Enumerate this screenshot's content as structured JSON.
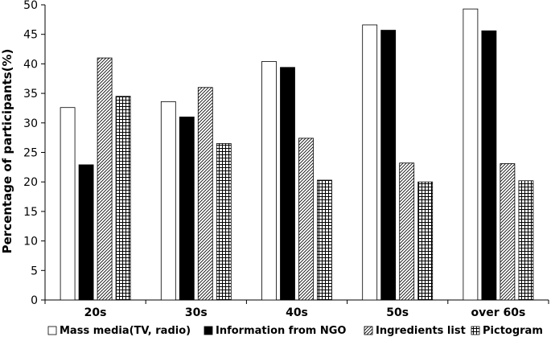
{
  "chart_data": {
    "type": "bar",
    "title": "",
    "xlabel": "",
    "ylabel": "Percentage of participants(%)",
    "ylim": [
      0,
      50
    ],
    "yticks": [
      "0",
      "5",
      "10",
      "15",
      "20",
      "25",
      "30",
      "35",
      "40",
      "45",
      "50"
    ],
    "categories": [
      "20s",
      "30s",
      "40s",
      "50s",
      "over 60s"
    ],
    "legend_position": "bottom",
    "grid": false,
    "series": [
      {
        "name": "Mass media(TV, radio)",
        "pattern": "white",
        "values": [
          32.6,
          33.6,
          40.4,
          46.6,
          49.3
        ]
      },
      {
        "name": "Information from NGO",
        "pattern": "black",
        "values": [
          22.9,
          31.0,
          39.4,
          45.7,
          45.6
        ]
      },
      {
        "name": "Ingredients list",
        "pattern": "diagonal",
        "values": [
          41.0,
          36.0,
          27.4,
          23.2,
          23.1
        ]
      },
      {
        "name": "Pictogram",
        "pattern": "grid",
        "values": [
          34.5,
          26.5,
          20.3,
          20.0,
          20.2
        ]
      }
    ]
  }
}
